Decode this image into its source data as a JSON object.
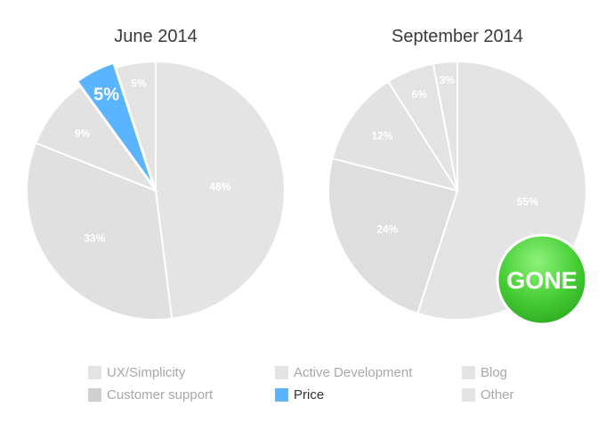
{
  "chart_data": [
    {
      "type": "pie",
      "title": "June 2014",
      "slices": [
        {
          "label": "Active Development",
          "value": 48,
          "text": "48%",
          "color": "#e4e4e4"
        },
        {
          "label": "UX/Simplicity",
          "value": 33,
          "text": "33%",
          "color": "#e0e0e0"
        },
        {
          "label": "Customer support",
          "value": 9,
          "text": "9%",
          "color": "#e2e2e2"
        },
        {
          "label": "Price",
          "value": 5,
          "text": "5%",
          "color": "#5ab4ff"
        },
        {
          "label": "Other",
          "value": 5,
          "text": "5%",
          "color": "#e3e3e3"
        }
      ]
    },
    {
      "type": "pie",
      "title": "September 2014",
      "slices": [
        {
          "label": "Active Development",
          "value": 55,
          "text": "55%",
          "color": "#e4e4e4"
        },
        {
          "label": "UX/Simplicity",
          "value": 24,
          "text": "24%",
          "color": "#dedede"
        },
        {
          "label": "Customer support",
          "value": 12,
          "text": "12%",
          "color": "#e2e2e2"
        },
        {
          "label": "Blog",
          "value": 6,
          "text": "6%",
          "color": "#e3e3e3"
        },
        {
          "label": "Other",
          "value": 3,
          "text": "3%",
          "color": "#e3e3e3"
        }
      ]
    }
  ],
  "badge": {
    "text": "GONE",
    "color": "#44cc33"
  },
  "legend": [
    {
      "label": "UX/Simplicity",
      "color": "#e3e3e3",
      "highlight": false
    },
    {
      "label": "Active Development",
      "color": "#e3e3e3",
      "highlight": false
    },
    {
      "label": "Blog",
      "color": "#e3e3e3",
      "highlight": false
    },
    {
      "label": "Customer support",
      "color": "#cfcfcf",
      "highlight": false
    },
    {
      "label": "Price",
      "color": "#5ab4ff",
      "highlight": true
    },
    {
      "label": "Other",
      "color": "#e3e3e3",
      "highlight": false
    }
  ]
}
